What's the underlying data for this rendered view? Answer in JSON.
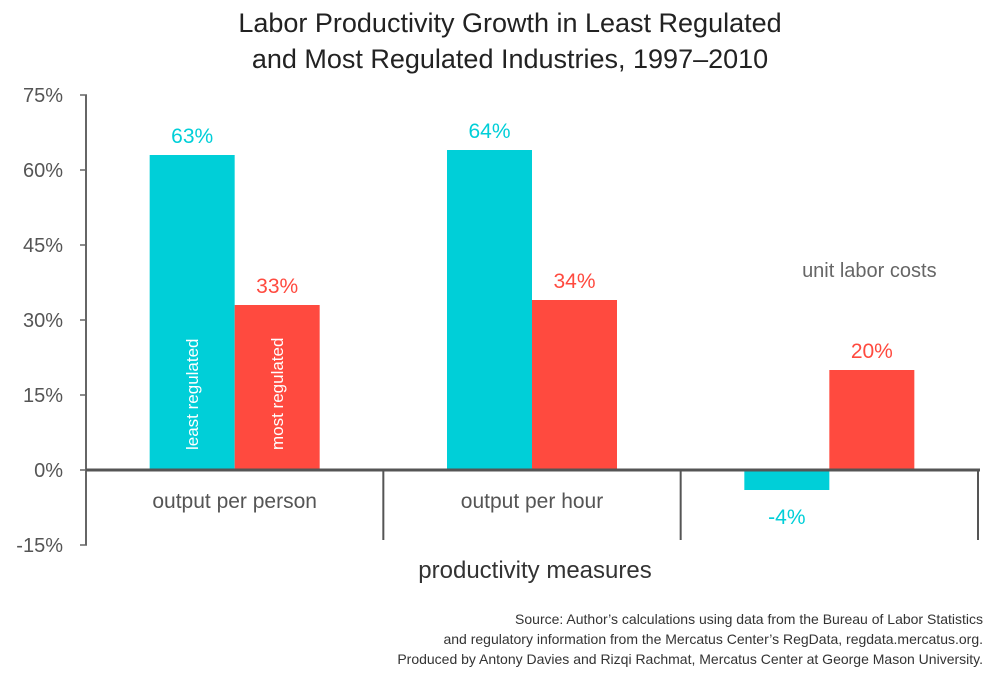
{
  "chart_data": {
    "type": "bar",
    "title": [
      "Labor Productivity Growth in Least Regulated",
      "and Most Regulated Industries, 1997–2010"
    ],
    "xlabel": "productivity measures",
    "ylabel": "",
    "ylim": [
      -15,
      75
    ],
    "yticks": [
      -15,
      0,
      15,
      30,
      45,
      60,
      75
    ],
    "ytick_labels": [
      "-15%",
      "0%",
      "15%",
      "30%",
      "45%",
      "60%",
      "75%"
    ],
    "categories": [
      "output per person",
      "output per hour",
      "unit labor costs"
    ],
    "series": [
      {
        "name": "least regulated",
        "color": "#00CFD8",
        "values": [
          63,
          64,
          -4
        ],
        "labels": [
          "63%",
          "64%",
          "-4%"
        ]
      },
      {
        "name": "most regulated",
        "color": "#FF4A3F",
        "values": [
          33,
          34,
          20
        ],
        "labels": [
          "33%",
          "34%",
          "20%"
        ]
      }
    ],
    "grid": false,
    "legend": "labels inside first group bars"
  },
  "source_lines": [
    "Source: Author’s calculations using data from the Bureau of Labor Statistics",
    "and regulatory information from the Mercatus Center’s RegData, regdata.mercatus.org.",
    "Produced by Antony Davies and Rizqi Rachmat, Mercatus Center at George Mason University."
  ]
}
